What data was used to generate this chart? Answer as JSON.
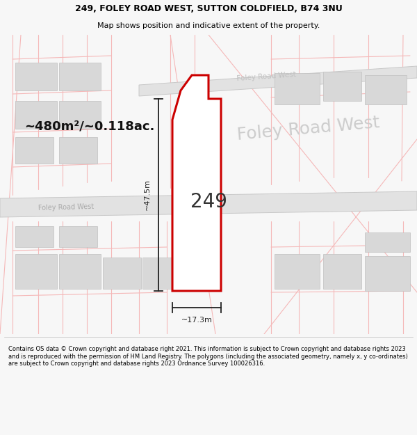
{
  "title_line1": "249, FOLEY ROAD WEST, SUTTON COLDFIELD, B74 3NU",
  "title_line2": "Map shows position and indicative extent of the property.",
  "footer_text": "Contains OS data © Crown copyright and database right 2021. This information is subject to Crown copyright and database rights 2023 and is reproduced with the permission of HM Land Registry. The polygons (including the associated geometry, namely x, y co-ordinates) are subject to Crown copyright and database rights 2023 Ordnance Survey 100026316.",
  "area_label_bold": "~480m²/~0.118ac.",
  "road_label_lower": "Foley Road West",
  "road_label_upper": "Foley Road West",
  "property_number": "249",
  "dim_width": "~17.3m",
  "dim_height": "~47.5m",
  "bg_color": "#f7f7f7",
  "map_bg": "#f0f0f0",
  "road_fill": "#e2e2e2",
  "road_stroke": "#c8c8c8",
  "plot_outline_color": "#cc0000",
  "plot_fill_color": "#ffffff",
  "grid_line_color": "#f5b8b8",
  "building_fill": "#d8d8d8",
  "building_stroke": "#c0c0c0",
  "footer_bg": "#ffffff",
  "title_bg": "#ffffff",
  "dim_color": "#222222",
  "road_text_color": "#aaaaaa",
  "area_label_ghost_color": "#cccccc"
}
